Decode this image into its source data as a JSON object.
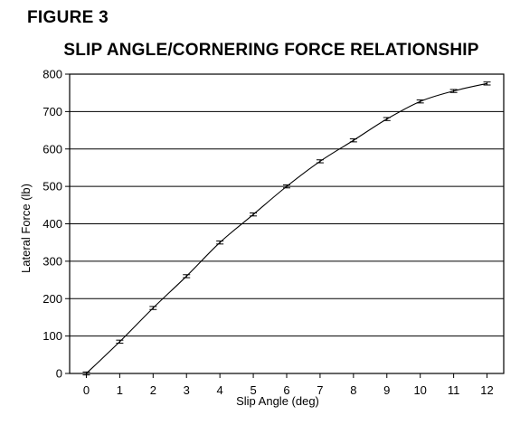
{
  "figure_label": "FIGURE 3",
  "chart_data": {
    "type": "line",
    "title": "SLIP ANGLE/CORNERING FORCE RELATIONSHIP",
    "xlabel": "Slip Angle (deg)",
    "ylabel": "Lateral Force (lb)",
    "xlim": [
      -0.5,
      12.5
    ],
    "ylim": [
      0,
      800
    ],
    "xticks": [
      0,
      1,
      2,
      3,
      4,
      5,
      6,
      7,
      8,
      9,
      10,
      11,
      12
    ],
    "yticks": [
      0,
      100,
      200,
      300,
      400,
      500,
      600,
      700,
      800
    ],
    "grid": "horizontal",
    "legend": "none",
    "error_bars": true,
    "error_bar_half_height": 4,
    "series": [
      {
        "x": [
          0,
          1,
          2,
          3,
          4,
          5,
          6,
          7,
          8,
          9,
          10,
          11,
          12
        ],
        "y": [
          0,
          85,
          175,
          260,
          350,
          425,
          500,
          567,
          623,
          680,
          727,
          755,
          775
        ]
      }
    ]
  }
}
